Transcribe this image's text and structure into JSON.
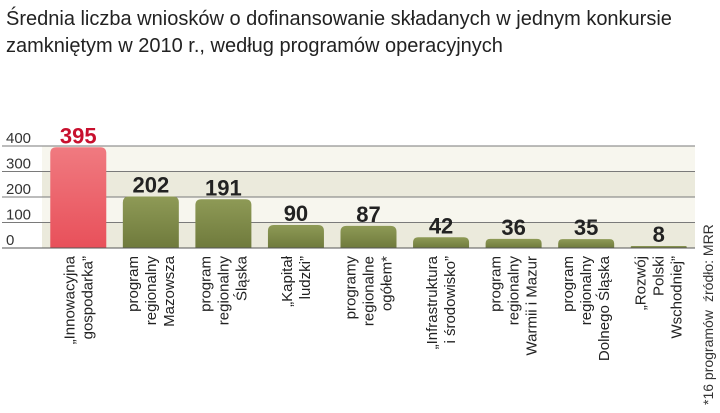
{
  "chart_data": {
    "type": "bar",
    "title_lines": [
      "Średnia liczba wniosków o dofinansowanie składanych w jednym konkursie",
      "zamkniętym w 2010 r., według programów operacyjnych"
    ],
    "categories": [
      [
        "„Innowacyjna",
        "gospodarka”"
      ],
      [
        "program",
        "regionalny",
        "Mazowsza"
      ],
      [
        "program",
        "regionalny",
        "Śląska"
      ],
      [
        "„Kapitał",
        "ludzki”"
      ],
      [
        "programy",
        "regionalne",
        "ogółem*"
      ],
      [
        "„Infrastruktura",
        "i środowisko”"
      ],
      [
        "program",
        "regionalny",
        "Warmii i Mazur"
      ],
      [
        "program",
        "regionalny",
        "Dolnego Śląska"
      ],
      [
        "„Rozwój",
        "Polski",
        "Wschodniej”"
      ]
    ],
    "values": [
      395,
      202,
      191,
      90,
      87,
      42,
      36,
      35,
      8
    ],
    "value_labels": [
      "395",
      "202",
      "191",
      "90",
      "87",
      "42",
      "36",
      "35",
      "8"
    ],
    "highlight_index": 0,
    "yticks": [
      "0",
      "100",
      "200",
      "300",
      "400"
    ],
    "ylim": [
      0,
      400
    ],
    "grid": true,
    "footnote": "*16 programów",
    "source": "źródło: MRR",
    "colors": {
      "bar": "#6f7a3c",
      "bar_top": "#8e9a56",
      "highlight": "#e8505a",
      "highlight_top": "#f07a80",
      "highlight_label": "#c8102e",
      "label": "#222222",
      "band_light": "#f7f6ee",
      "band_dark": "#ebeadc"
    }
  }
}
